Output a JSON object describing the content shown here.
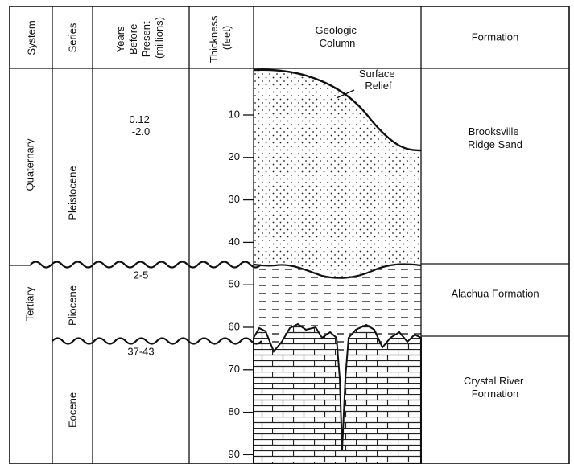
{
  "headers": {
    "system": "System",
    "series": "Series",
    "years": [
      "Years",
      "Before",
      "Present",
      "(millions)"
    ],
    "thickness": [
      "Thickness",
      "(feet)"
    ],
    "column": [
      "Geologic",
      "Column"
    ],
    "formation": "Formation"
  },
  "systems": [
    "Quaternary",
    "Tertiary"
  ],
  "series": [
    "Pleistocene",
    "Pliocene",
    "Eocene"
  ],
  "ages": [
    [
      "0.12",
      "-2.0"
    ],
    [
      "2-5"
    ],
    [
      "37-43"
    ]
  ],
  "depth_labels": [
    10,
    20,
    30,
    40,
    50,
    60,
    70,
    80,
    90
  ],
  "annotation": [
    "Surface",
    "Relief"
  ],
  "formations": [
    [
      "Brooksville",
      "Ridge Sand"
    ],
    [
      "Alachua Formation"
    ],
    [
      "Crystal River",
      "Formation"
    ]
  ]
}
